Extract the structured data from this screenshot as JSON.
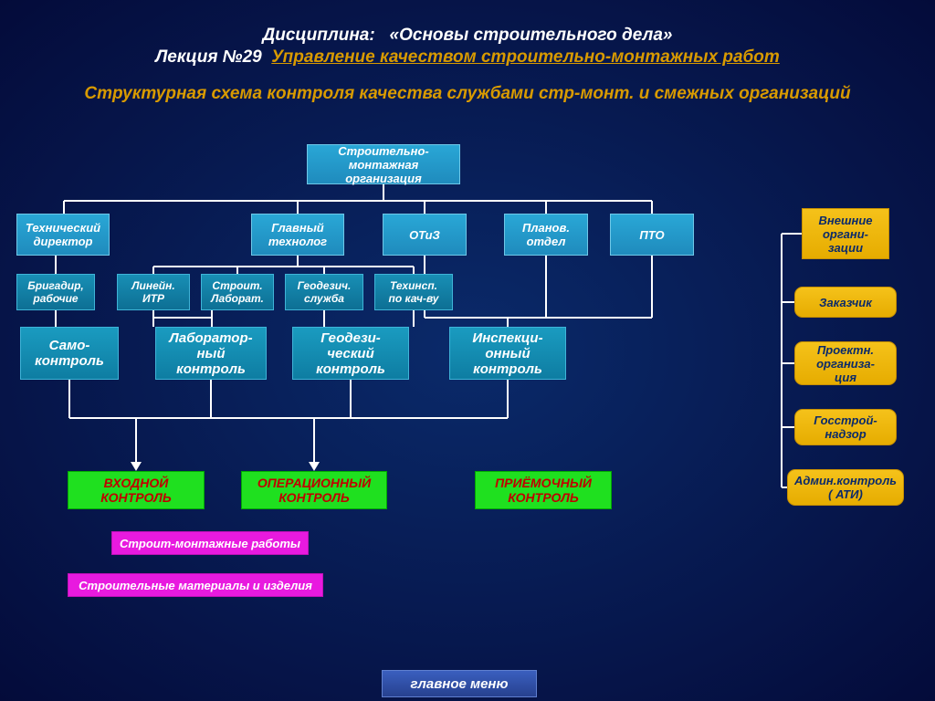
{
  "header": {
    "discipline_label": "Дисциплина:",
    "discipline_name": "«Основы строительного дела»",
    "lecture_label": "Лекция №29",
    "lecture_title": "Управление  качеством  строительно-монтажных работ",
    "subtitle": "Структурная  схема  контроля  качества  службами  стр-монт. и смежных организаций"
  },
  "nodes": {
    "root": "Строительно-монтажная\nорганизация",
    "tech_dir": "Технический\nдиректор",
    "main_tech": "Главный\nтехнолог",
    "otiz": "ОТиЗ",
    "plan": "Планов.\nотдел",
    "pto": "ПТО",
    "brig": "Бригадир,\nрабочие",
    "lin_itr": "Линейн.\nИТР",
    "str_lab": "Строит.\nЛаборат.",
    "geo_sl": "Геодезич.\nслужба",
    "tech_insp": "Техинсп.\nпо кач-ву",
    "self_ctrl": "Само-\nконтроль",
    "lab_ctrl": "Лаборатор-\nный\nконтроль",
    "geo_ctrl": "Геодези-\nческий\nконтроль",
    "insp_ctrl": "Инспекци-\nонный\nконтроль",
    "in_ctrl": "ВХОДНОЙ\nКОНТРОЛЬ",
    "op_ctrl": "ОПЕРАЦИОННЫЙ\nКОНТРОЛЬ",
    "acc_ctrl": "ПРИЁМОЧНЫЙ\nКОНТРОЛЬ",
    "smr": "Строит-монтажные  работы",
    "mat": "Строительные  материалы и изделия",
    "ext_org": "Внешние\nоргани-\nзации",
    "customer": "Заказчик",
    "proj_org": "Проектн.\nорганиза-\nция",
    "gos": "Госстрой-\nнадзор",
    "admin": "Админ.контроль\n( АТИ)",
    "menu": "главное меню"
  },
  "geom": {
    "root": [
      336,
      158,
      168,
      44
    ],
    "tech_dir": [
      18,
      234,
      102,
      46
    ],
    "main_tech": [
      275,
      234,
      102,
      46
    ],
    "otiz": [
      419,
      234,
      92,
      46
    ],
    "plan": [
      552,
      234,
      92,
      46
    ],
    "pto": [
      668,
      234,
      92,
      46
    ],
    "brig": [
      18,
      300,
      86,
      40
    ],
    "lin_itr": [
      128,
      300,
      80,
      40
    ],
    "str_lab": [
      220,
      300,
      80,
      40
    ],
    "geo_sl": [
      312,
      300,
      86,
      40
    ],
    "tech_insp": [
      410,
      300,
      86,
      40
    ],
    "self_ctrl": [
      22,
      358,
      108,
      58
    ],
    "lab_ctrl": [
      170,
      358,
      122,
      58
    ],
    "geo_ctrl": [
      320,
      358,
      128,
      58
    ],
    "insp_ctrl": [
      492,
      358,
      128,
      58
    ],
    "in_ctrl": [
      74,
      516,
      150,
      42
    ],
    "op_ctrl": [
      264,
      516,
      160,
      42
    ],
    "acc_ctrl": [
      520,
      516,
      150,
      42
    ],
    "smr": [
      122,
      582,
      216,
      26
    ],
    "mat": [
      74,
      628,
      280,
      26
    ],
    "ext_org": [
      878,
      228,
      96,
      56
    ],
    "customer": [
      870,
      314,
      112,
      34
    ],
    "proj_org": [
      870,
      374,
      112,
      48
    ],
    "gos": [
      870,
      448,
      112,
      40
    ],
    "admin": [
      862,
      514,
      128,
      40
    ],
    "menu": [
      418,
      734,
      170,
      30
    ]
  },
  "colors": {
    "bg_center": "#0a2a6a",
    "bg_edge": "#040b3a",
    "cyan": "#29a7d6",
    "teal": "#188fb5",
    "green": "#1fe01f",
    "green_text": "#c00000",
    "magenta": "#e81adf",
    "yellow": "#f5c21a",
    "nav": "#3a5fbf",
    "line": "#ffffff"
  }
}
